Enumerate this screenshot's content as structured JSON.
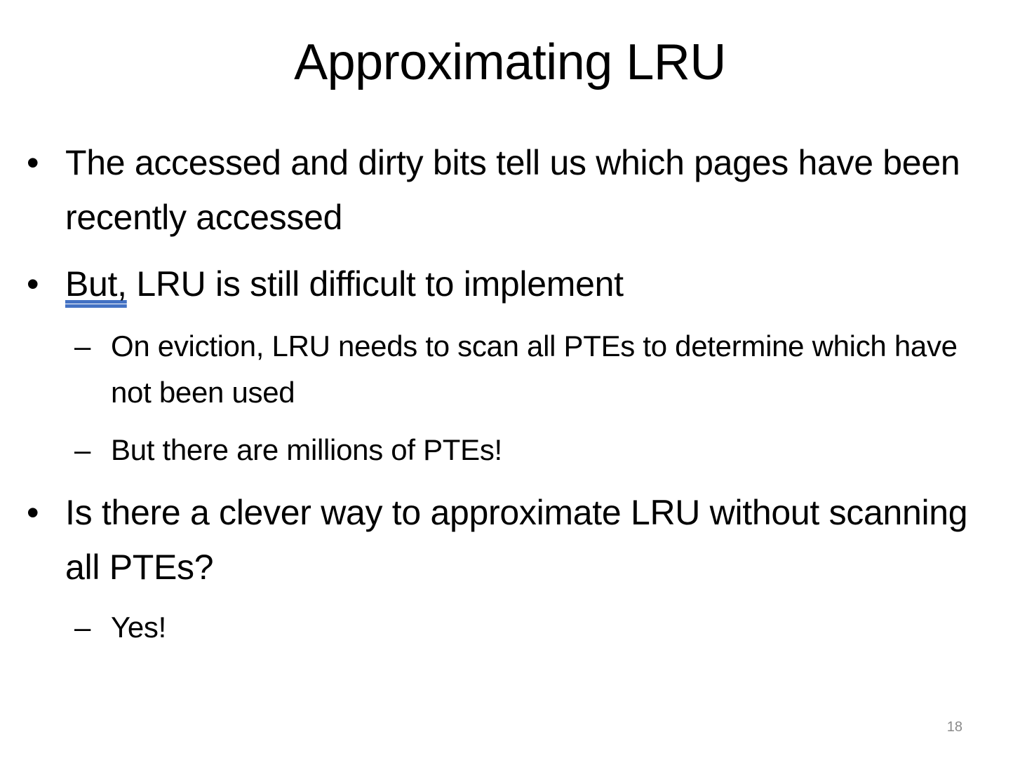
{
  "slide": {
    "title": "Approximating LRU",
    "bullet_marker": "•",
    "dash_marker": "–",
    "bullets": [
      {
        "text": "The accessed and dirty bits tell us which pages have been recently accessed"
      },
      {
        "prefix": "But,",
        "text": " LRU is still difficult to implement",
        "subs": [
          "On eviction, LRU needs to scan all PTEs to determine which have not been used",
          "But there are millions of PTEs!"
        ]
      },
      {
        "text": "Is there a clever way to approximate LRU without scanning all PTEs?",
        "subs": [
          "Yes!"
        ]
      }
    ],
    "page_number": "18"
  }
}
